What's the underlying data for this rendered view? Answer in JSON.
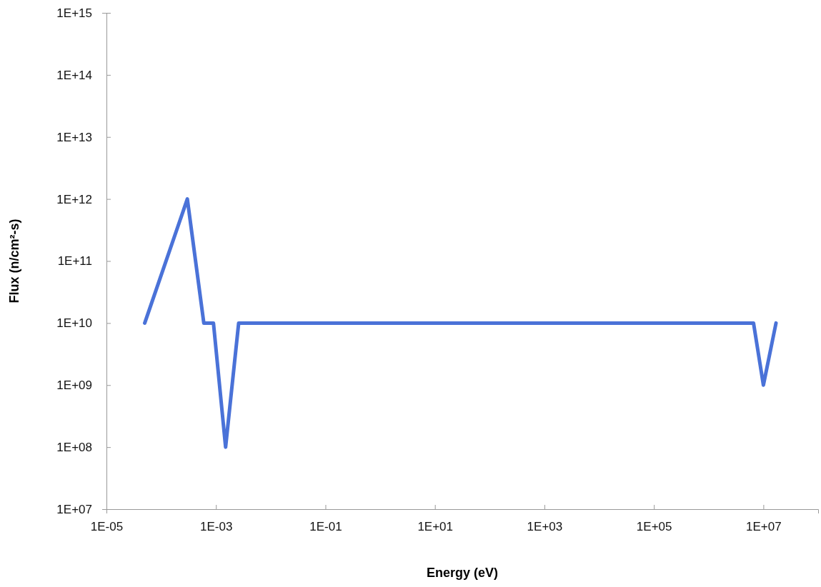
{
  "chart_data": {
    "type": "line",
    "xlabel": "Energy (eV)",
    "ylabel": "Flux (n/cm²-s)",
    "log": "xy",
    "x": [
      5e-05,
      0.0003,
      0.0006,
      0.0009,
      0.0015,
      0.0026,
      6600000.0,
      10000000.0,
      17000000.0
    ],
    "series": [
      {
        "color": "#4a72d8",
        "values": [
          10000000000.0,
          1000000000000.0,
          10000000000.0,
          10000000000.0,
          100000000.0,
          10000000000.0,
          10000000000.0,
          1000000000.0,
          10000000000.0
        ]
      }
    ],
    "xlim": [
      1e-05,
      100000000.0
    ],
    "xticks": [
      {
        "value": 1e-05,
        "label": "1E-05"
      },
      {
        "value": 0.001,
        "label": "1E-03"
      },
      {
        "value": 0.1,
        "label": "1E-01"
      },
      {
        "value": 10,
        "label": "1E+01"
      },
      {
        "value": 1000,
        "label": "1E+03"
      },
      {
        "value": 100000.0,
        "label": "1E+05"
      },
      {
        "value": 10000000.0,
        "label": "1E+07"
      }
    ],
    "ylim": [
      10000000.0,
      1000000000000000.0
    ],
    "yticks": [
      {
        "value": 10000000.0,
        "label": "1E+07"
      },
      {
        "value": 100000000.0,
        "label": "1E+08"
      },
      {
        "value": 1000000000.0,
        "label": "1E+09"
      },
      {
        "value": 10000000000.0,
        "label": "1E+10"
      },
      {
        "value": 100000000000.0,
        "label": "1E+11"
      },
      {
        "value": 1000000000000.0,
        "label": "1E+12"
      },
      {
        "value": 10000000000000.0,
        "label": "1E+13"
      },
      {
        "value": 100000000000000.0,
        "label": "1E+14"
      },
      {
        "value": 1000000000000000.0,
        "label": "1E+15"
      }
    ],
    "grid": false,
    "marker": "none",
    "line_style": "solid"
  }
}
